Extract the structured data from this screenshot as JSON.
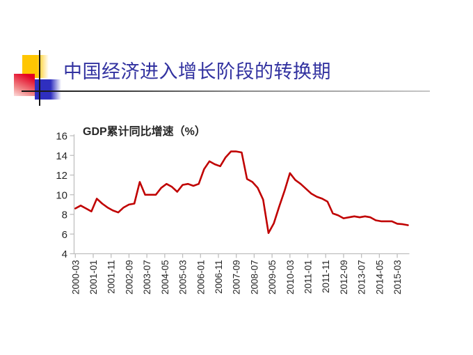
{
  "slide": {
    "title": "中国经济进入增长阶段的转换期",
    "title_color": "#3232A0",
    "decoration_colors": {
      "yellow": "#FFC602",
      "red": "#E30022",
      "blue": "#2F2FBF"
    }
  },
  "chart_data": {
    "type": "line",
    "title": "GDP累计同比增速（%）",
    "series_color": "#C00000",
    "axis_color": "#BFBFBF",
    "grid": false,
    "legend": "none",
    "ylim": [
      4,
      16
    ],
    "y_ticks": [
      16,
      14,
      12,
      10,
      8,
      6,
      4
    ],
    "x_tick_labels": [
      "2000-03",
      "2001-01",
      "2001-11",
      "2002-09",
      "2003-07",
      "2004-05",
      "2005-03",
      "2006-01",
      "2006-11",
      "2007-09",
      "2008-07",
      "2009-05",
      "2010-03",
      "2011-01",
      "2011-11",
      "2012-09",
      "2013-07",
      "2014-05",
      "2015-03"
    ],
    "series": [
      {
        "name": "GDP累计同比增速",
        "start": "2000-03",
        "frequency": "quarterly",
        "values": [
          8.6,
          8.9,
          8.6,
          8.3,
          9.6,
          9.1,
          8.7,
          8.4,
          8.2,
          8.7,
          9.0,
          9.1,
          11.3,
          10.0,
          10.0,
          10.0,
          10.7,
          11.1,
          10.8,
          10.3,
          11.0,
          11.1,
          10.9,
          11.1,
          12.6,
          13.4,
          13.1,
          12.9,
          13.8,
          14.4,
          14.4,
          14.3,
          11.6,
          11.3,
          10.7,
          9.5,
          6.1,
          7.1,
          8.8,
          10.4,
          12.2,
          11.5,
          11.1,
          10.6,
          10.1,
          9.8,
          9.6,
          9.3,
          8.1,
          7.9,
          7.6,
          7.7,
          7.8,
          7.7,
          7.8,
          7.7,
          7.4,
          7.3,
          7.3,
          7.3,
          7.05,
          7.0,
          6.9
        ]
      }
    ]
  }
}
